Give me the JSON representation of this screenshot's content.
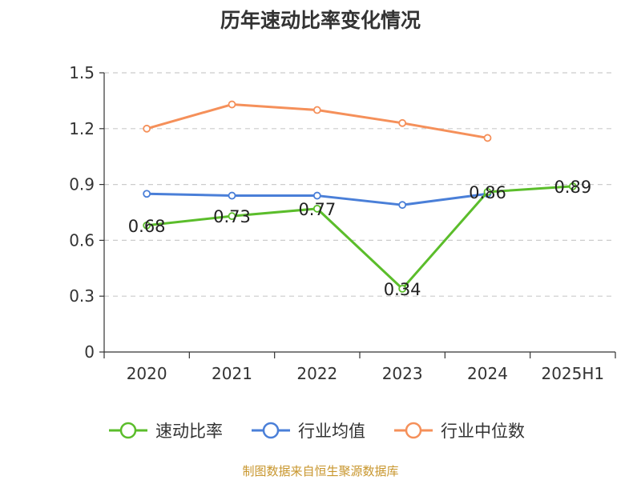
{
  "chart_data": {
    "type": "line",
    "title": "历年速动比率变化情况",
    "categories": [
      "2020",
      "2021",
      "2022",
      "2023",
      "2024",
      "2025H1"
    ],
    "y_ticks": [
      "0",
      "0.3",
      "0.6",
      "0.9",
      "1.2",
      "1.5"
    ],
    "ylim": [
      0,
      1.5
    ],
    "grid": true,
    "legend_position": "bottom",
    "series": [
      {
        "name": "速动比率",
        "color": "#5bbd2b",
        "values": [
          0.68,
          0.73,
          0.77,
          0.34,
          0.86,
          0.89
        ],
        "labels": [
          "0.68",
          "0.73",
          "0.77",
          "0.34",
          "0.86",
          "0.89"
        ]
      },
      {
        "name": "行业均值",
        "color": "#4a7fd8",
        "values": [
          0.85,
          0.84,
          0.84,
          0.79,
          0.85,
          null
        ]
      },
      {
        "name": "行业中位数",
        "color": "#f5905a",
        "values": [
          1.2,
          1.33,
          1.3,
          1.23,
          1.15,
          null
        ]
      }
    ]
  },
  "footer": {
    "source": "制图数据来自恒生聚源数据库"
  }
}
